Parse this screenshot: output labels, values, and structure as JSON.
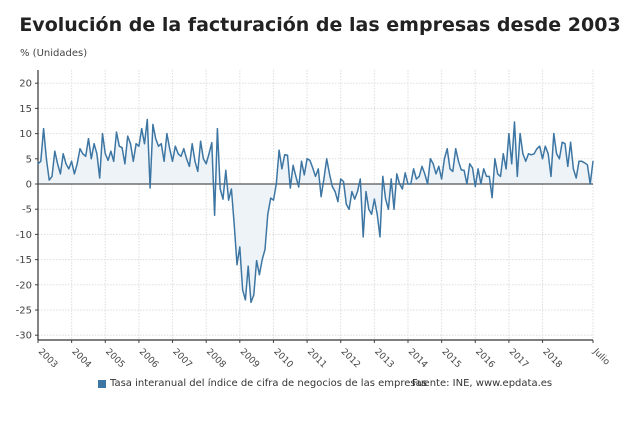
{
  "chart_data": {
    "type": "area",
    "title": "Evolución de la facturación de las empresas desde 2003",
    "ylabel": "% (Unidades)",
    "xlabel": "",
    "ylim": [
      -30,
      20
    ],
    "y_ticks": [
      "20",
      "15",
      "10",
      "5",
      "0",
      "-5",
      "-10",
      "-15",
      "-20",
      "-25",
      "-30"
    ],
    "y_tick_values": [
      20,
      15,
      10,
      5,
      0,
      -5,
      -10,
      -15,
      -20,
      -25,
      -30
    ],
    "x_ticks": [
      "2003",
      "2004",
      "2005",
      "2006",
      "2007",
      "2008",
      "2009",
      "2010",
      "2011",
      "2012",
      "2013",
      "2014",
      "2015",
      "2016",
      "2017",
      "2018",
      "Julio"
    ],
    "x_range": [
      "2003-01",
      "2019-07"
    ],
    "grid": true,
    "legend_position": "bottom",
    "line_color": "#3d76a3",
    "fill_color": "#eef3f8",
    "series": [
      {
        "name": "Tasa interanual del índice de cifra de negocios de las empresas",
        "frequency": "monthly",
        "start": "2003-01",
        "values": [
          4,
          4.5,
          11,
          5,
          0.8,
          1.5,
          6.5,
          4,
          2,
          6,
          4,
          3,
          4.5,
          2,
          4,
          7,
          6,
          5.5,
          9,
          5,
          8,
          6,
          1.2,
          10,
          6,
          4.7,
          6.5,
          4.5,
          10.3,
          7.5,
          7.2,
          4,
          9.5,
          8,
          4.5,
          8,
          7.5,
          11,
          8,
          12.8,
          -0.8,
          11.8,
          9,
          7.5,
          8,
          4.5,
          10,
          7,
          4.5,
          7.5,
          6,
          5.5,
          7,
          5,
          3.5,
          8,
          4.5,
          2.5,
          8.5,
          5,
          4,
          6,
          8.2,
          -6.2,
          11,
          -1,
          -3,
          2.7,
          -3.2,
          -1,
          -8,
          -16,
          -12.5,
          -21,
          -23,
          -16.3,
          -23.5,
          -22,
          -15.2,
          -18,
          -15,
          -13,
          -6,
          -2.8,
          -3.2,
          0,
          6.7,
          3,
          5.8,
          5.7,
          -0.8,
          3.7,
          1.5,
          -0.6,
          4.5,
          1.8,
          5,
          4.7,
          3.2,
          1.5,
          3,
          -2.5,
          1,
          5,
          2,
          -0.5,
          -1.5,
          -3.5,
          1,
          0.5,
          -4,
          -5,
          -1.5,
          -3,
          -1.5,
          1,
          -10.5,
          -1.5,
          -5,
          -6,
          -3,
          -6,
          -10.5,
          1.5,
          -3,
          -5,
          1,
          -5,
          2,
          0,
          -1,
          2.2,
          0,
          0,
          3,
          1,
          1.5,
          3.5,
          2,
          0,
          5,
          4,
          2,
          3.5,
          1,
          5,
          7,
          3,
          2.5,
          7,
          4.5,
          2.8,
          2.7,
          0,
          4,
          3.2,
          -0.5,
          3,
          0,
          3,
          1.5,
          1.5,
          -2.7,
          5,
          2,
          1.5,
          6,
          3,
          10,
          4,
          12.3,
          1.5,
          10,
          6,
          4.5,
          6,
          5.8,
          6,
          7,
          7.5,
          5,
          7.5,
          6,
          1.5,
          10,
          6,
          5,
          8.3,
          8,
          3.5,
          8.3,
          3,
          1.2,
          4.5,
          4.5,
          4.2,
          3.8,
          0,
          4.5
        ]
      }
    ],
    "source": "Fuente: INE, www.epdata.es"
  }
}
